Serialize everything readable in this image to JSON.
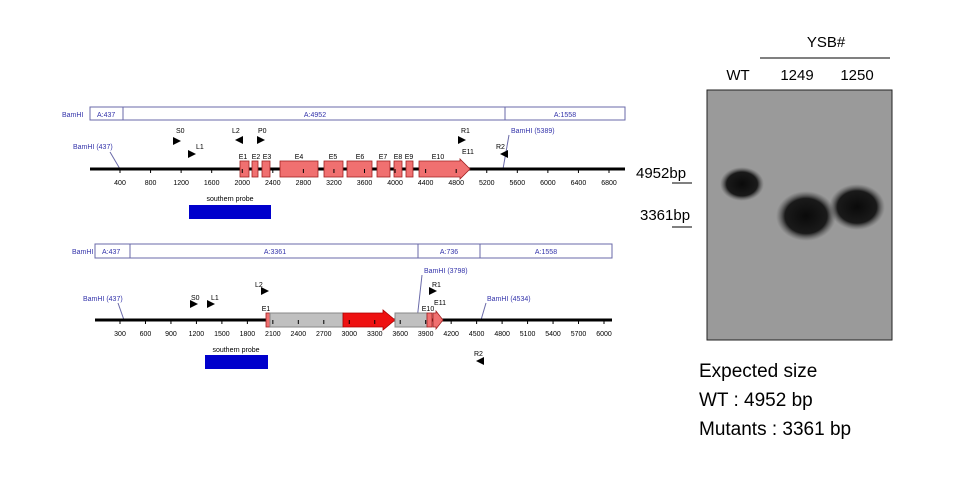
{
  "wild_type_map": {
    "fragment_bar": {
      "enzyme": "BamHI",
      "fragments": [
        "A:437",
        "A:4952",
        "A:1558"
      ]
    },
    "sites": [
      "BamHI (437)",
      "BamHI (5389)"
    ],
    "primers": [
      "S0",
      "L1",
      "L2",
      "P0",
      "R1",
      "E11",
      "R2"
    ],
    "exons": [
      "E1",
      "E2",
      "E3",
      "E4",
      "E5",
      "E6",
      "E7",
      "E8",
      "E9",
      "E10"
    ],
    "axis_ticks": [
      "400",
      "800",
      "1200",
      "1600",
      "2000",
      "2400",
      "2800",
      "3200",
      "3600",
      "4000",
      "4400",
      "4800",
      "5200",
      "5600",
      "6000",
      "6400",
      "6800"
    ],
    "probe": "southern probe"
  },
  "mutant_map": {
    "fragment_bar": {
      "enzyme": "BamHI",
      "fragments": [
        "A:437",
        "A:3361",
        "A:736",
        "A:1558"
      ]
    },
    "sites": [
      "BamHI (437)",
      "BamHI (3798)",
      "BamHI (4534)"
    ],
    "primers": [
      "S0",
      "L1",
      "L2",
      "R1",
      "R2"
    ],
    "exons": [
      "E1",
      "E10",
      "E11"
    ],
    "axis_ticks": [
      "300",
      "600",
      "900",
      "1200",
      "1500",
      "1800",
      "2100",
      "2400",
      "2700",
      "3000",
      "3300",
      "3600",
      "3900",
      "4200",
      "4500",
      "4800",
      "5100",
      "5400",
      "5700",
      "6000"
    ],
    "probe": "southern probe"
  },
  "blot": {
    "group": "YSB#",
    "lanes": [
      "WT",
      "1249",
      "1250"
    ],
    "markers": [
      "4952bp",
      "3361bp"
    ]
  },
  "expected": {
    "title": "Expected size",
    "lines": [
      "WT : 4952 bp",
      "Mutants : 3361 bp"
    ]
  }
}
